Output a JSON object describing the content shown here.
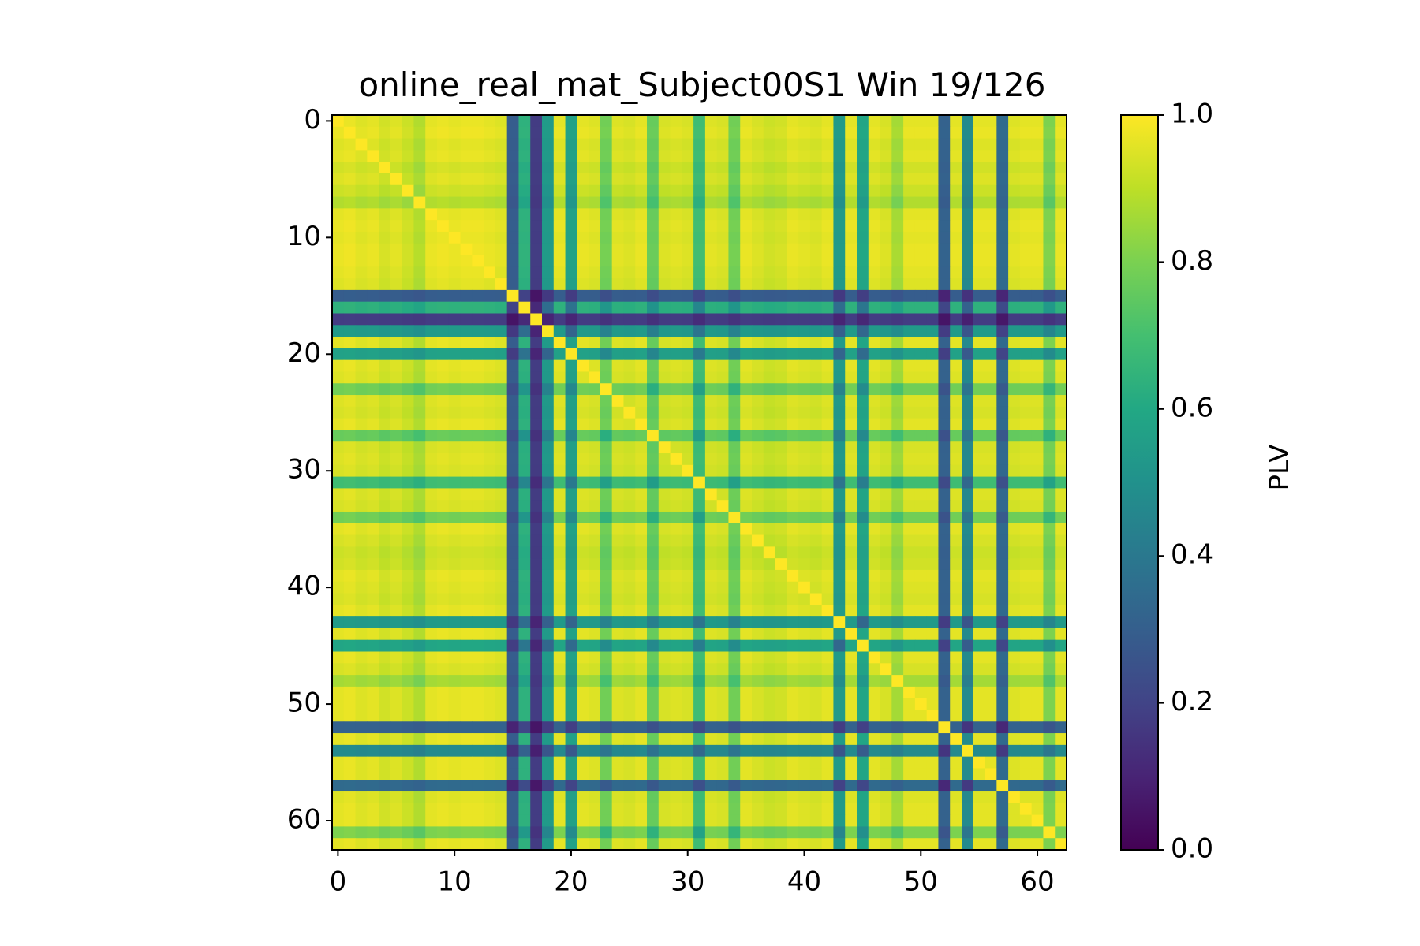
{
  "chart_data": {
    "type": "heatmap",
    "title": "online_real_mat_Subject00S1 Win 19/126",
    "colorbar_label": "PLV",
    "colormap": "viridis",
    "n_channels": 63,
    "xlim": [
      -0.5,
      62.5
    ],
    "ylim": [
      62.5,
      -0.5
    ],
    "x_ticks": [
      0,
      10,
      20,
      30,
      40,
      50,
      60
    ],
    "y_ticks": [
      0,
      10,
      20,
      30,
      40,
      50,
      60
    ],
    "x_tick_labels": [
      "0",
      "10",
      "20",
      "30",
      "40",
      "50",
      "60"
    ],
    "y_tick_labels": [
      "0",
      "10",
      "20",
      "30",
      "40",
      "50",
      "60"
    ],
    "colorbar_range": [
      0.0,
      1.0
    ],
    "colorbar_ticks": [
      0.0,
      0.2,
      0.4,
      0.6,
      0.8,
      1.0
    ],
    "colorbar_tick_labels": [
      "0.0",
      "0.2",
      "0.4",
      "0.6",
      "0.8",
      "1.0"
    ],
    "channel_strength": [
      0.98,
      0.99,
      0.97,
      0.98,
      0.95,
      0.97,
      0.94,
      0.9,
      0.98,
      0.99,
      0.98,
      0.99,
      0.99,
      0.98,
      0.97,
      0.3,
      0.65,
      0.18,
      0.55,
      0.98,
      0.58,
      0.98,
      0.97,
      0.8,
      0.97,
      0.96,
      0.98,
      0.78,
      0.96,
      0.97,
      0.96,
      0.7,
      0.97,
      0.96,
      0.8,
      0.98,
      0.96,
      0.94,
      0.95,
      0.98,
      0.97,
      0.96,
      0.98,
      0.55,
      0.98,
      0.6,
      0.98,
      0.96,
      0.88,
      0.98,
      0.98,
      0.98,
      0.32,
      0.98,
      0.48,
      0.98,
      0.98,
      0.35,
      0.97,
      0.98,
      0.98,
      0.82,
      0.98
    ]
  }
}
